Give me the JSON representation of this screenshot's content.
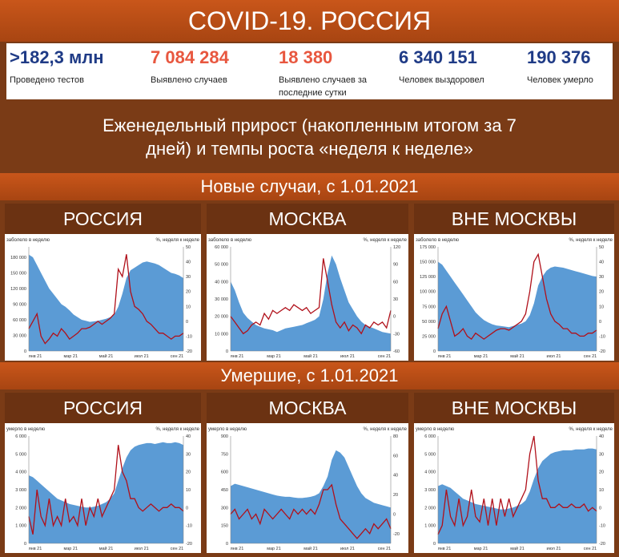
{
  "header": {
    "title": "COVID-19. РОССИЯ"
  },
  "stats": [
    {
      "value": ">182,3 млн",
      "label": "Проведено тестов",
      "color": "#1f3b86"
    },
    {
      "value": "7 084 284",
      "label": "Выявлено случаев",
      "color": "#e8573f"
    },
    {
      "value": "18 380",
      "label": "Выявлено случаев за последние сутки",
      "color": "#e8573f"
    },
    {
      "value": "6 340 151",
      "label": "Человек выздоровел",
      "color": "#1f3b86"
    },
    {
      "value": "190 376",
      "label": "Человек умерло",
      "color": "#1f3b86"
    }
  ],
  "subtitle_line1": "Еженедельный прирост (накопленным итогом за 7",
  "subtitle_line2": "дней) и темпы роста «неделя к неделе»",
  "section_cases": "Новые случаи, с 1.01.2021",
  "section_deaths": "Умершие, с 1.01.2021",
  "regions": [
    "РОССИЯ",
    "МОСКВА",
    "ВНЕ МОСКВЫ"
  ],
  "colors": {
    "area": "#5b9bd5",
    "line": "#b0101a"
  },
  "chart_data": [
    {
      "type": "area",
      "ylabel": "заболело в неделю",
      "y2label": "%, неделя к неделе",
      "x_ticks": [
        "янв 21",
        "мар 21",
        "май 21",
        "июл 21",
        "сен 21"
      ],
      "y_ticks": [
        "0",
        "30 000",
        "60 000",
        "90 000",
        "120 000",
        "150 000",
        "180 000"
      ],
      "ylim": [
        0,
        200000
      ],
      "y2_ticks": [
        "-20",
        "-10",
        "0",
        "10",
        "20",
        "30",
        "40",
        "50"
      ],
      "y2lim": [
        -20,
        50
      ],
      "series": [
        {
          "values": [
            185000,
            180000,
            165000,
            150000,
            135000,
            120000,
            110000,
            100000,
            90000,
            85000,
            78000,
            70000,
            65000,
            60000,
            58000,
            56000,
            57000,
            58000,
            60000,
            62000,
            65000,
            70000,
            85000,
            110000,
            140000,
            155000,
            160000,
            165000,
            170000,
            172000,
            170000,
            168000,
            165000,
            160000,
            155000,
            150000,
            148000,
            145000,
            140000
          ]
        },
        {
          "values": [
            -5,
            0,
            5,
            -10,
            -15,
            -12,
            -8,
            -10,
            -5,
            -8,
            -12,
            -10,
            -8,
            -5,
            -5,
            -4,
            -2,
            0,
            -2,
            0,
            2,
            5,
            35,
            30,
            45,
            20,
            10,
            8,
            5,
            0,
            -2,
            -5,
            -8,
            -8,
            -10,
            -12,
            -10,
            -10,
            -8
          ]
        }
      ]
    },
    {
      "type": "area",
      "ylabel": "заболело в неделю",
      "y2label": "%, неделя к неделе",
      "x_ticks": [
        "янв 21",
        "мар 21",
        "май 21",
        "июл 21",
        "сен 21"
      ],
      "y_ticks": [
        "0",
        "10 000",
        "20 000",
        "30 000",
        "40 000",
        "50 000",
        "60 000"
      ],
      "ylim": [
        0,
        60000
      ],
      "y2_ticks": [
        "-60",
        "-30",
        "0",
        "30",
        "60",
        "90",
        "120"
      ],
      "y2lim": [
        -60,
        120
      ],
      "series": [
        {
          "values": [
            40000,
            35000,
            28000,
            22000,
            19000,
            17000,
            15000,
            14000,
            13000,
            12500,
            12000,
            11000,
            12000,
            13000,
            13500,
            14000,
            14500,
            15000,
            16000,
            17000,
            18000,
            20000,
            30000,
            45000,
            55000,
            50000,
            42000,
            35000,
            28000,
            24000,
            20000,
            17000,
            15000,
            14000,
            13000,
            12000,
            11000,
            10500,
            10000
          ]
        },
        {
          "values": [
            0,
            -10,
            -20,
            -30,
            -25,
            -15,
            -10,
            -15,
            5,
            -5,
            10,
            5,
            10,
            15,
            10,
            20,
            15,
            10,
            15,
            5,
            10,
            15,
            100,
            60,
            20,
            -10,
            -20,
            -10,
            -25,
            -15,
            -20,
            -30,
            -15,
            -20,
            -10,
            -15,
            -10,
            -20,
            10
          ]
        }
      ]
    },
    {
      "type": "area",
      "ylabel": "заболело в неделю",
      "y2label": "%, неделя к неделе",
      "x_ticks": [
        "янв 21",
        "мар 21",
        "май 21",
        "июл 21",
        "сен 21"
      ],
      "y_ticks": [
        "0",
        "25 000",
        "50 000",
        "75 000",
        "100 000",
        "125 000",
        "150 000",
        "175 000"
      ],
      "ylim": [
        0,
        175000
      ],
      "y2_ticks": [
        "-20",
        "-10",
        "0",
        "10",
        "20",
        "30",
        "40",
        "50"
      ],
      "y2lim": [
        -20,
        50
      ],
      "series": [
        {
          "values": [
            150000,
            145000,
            135000,
            125000,
            115000,
            105000,
            95000,
            85000,
            75000,
            65000,
            58000,
            52000,
            48000,
            45000,
            43000,
            42000,
            41000,
            40000,
            42000,
            44000,
            46000,
            50000,
            60000,
            80000,
            110000,
            125000,
            135000,
            140000,
            142000,
            141000,
            140000,
            138000,
            136000,
            134000,
            132000,
            130000,
            128000,
            126000,
            125000
          ]
        },
        {
          "values": [
            -5,
            5,
            10,
            0,
            -10,
            -8,
            -5,
            -10,
            -12,
            -8,
            -10,
            -12,
            -10,
            -8,
            -6,
            -5,
            -5,
            -6,
            -4,
            -2,
            0,
            5,
            20,
            40,
            45,
            30,
            15,
            5,
            0,
            -2,
            -5,
            -5,
            -8,
            -8,
            -10,
            -10,
            -8,
            -8,
            -6
          ]
        }
      ]
    },
    {
      "type": "area",
      "ylabel": "умерло в неделю",
      "y2label": "%, неделя к неделе",
      "x_ticks": [
        "янв 21",
        "мар 21",
        "май 21",
        "июл 21",
        "сен 21"
      ],
      "y_ticks": [
        "0",
        "1 000",
        "2 000",
        "3 000",
        "4 000",
        "5 000",
        "6 000"
      ],
      "ylim": [
        0,
        6000
      ],
      "y2_ticks": [
        "-20",
        "-10",
        "0",
        "10",
        "20",
        "30",
        "40"
      ],
      "y2lim": [
        -20,
        40
      ],
      "series": [
        {
          "values": [
            3800,
            3700,
            3500,
            3300,
            3100,
            2900,
            2700,
            2500,
            2400,
            2300,
            2200,
            2150,
            2100,
            2050,
            2000,
            2000,
            2050,
            2100,
            2200,
            2300,
            2500,
            2800,
            3500,
            4200,
            4800,
            5200,
            5400,
            5500,
            5550,
            5600,
            5600,
            5550,
            5600,
            5650,
            5600,
            5600,
            5650,
            5600,
            5500
          ]
        },
        {
          "values": [
            -5,
            -15,
            10,
            -5,
            -10,
            5,
            -10,
            -5,
            -10,
            5,
            -8,
            -5,
            -10,
            5,
            -10,
            0,
            -5,
            5,
            -5,
            0,
            5,
            10,
            35,
            20,
            15,
            5,
            5,
            0,
            -2,
            0,
            2,
            0,
            -2,
            0,
            0,
            2,
            0,
            0,
            -2
          ]
        }
      ]
    },
    {
      "type": "area",
      "ylabel": "умерло в неделю",
      "y2label": "%, неделя к неделе",
      "x_ticks": [
        "янв 21",
        "мар 21",
        "май 21",
        "июл 21",
        "сен 21"
      ],
      "y_ticks": [
        "0",
        "150",
        "300",
        "450",
        "600",
        "750",
        "900"
      ],
      "ylim": [
        0,
        900
      ],
      "y2_ticks": [
        "-20",
        "0",
        "20",
        "40",
        "60",
        "80"
      ],
      "y2lim": [
        -30,
        80
      ],
      "series": [
        {
          "values": [
            480,
            500,
            490,
            480,
            470,
            460,
            450,
            440,
            430,
            420,
            410,
            400,
            395,
            390,
            390,
            385,
            380,
            380,
            385,
            390,
            400,
            420,
            480,
            560,
            700,
            780,
            760,
            720,
            640,
            560,
            480,
            420,
            380,
            360,
            340,
            330,
            320,
            310,
            300
          ]
        },
        {
          "values": [
            0,
            5,
            -5,
            0,
            5,
            -5,
            0,
            -10,
            5,
            0,
            -5,
            0,
            5,
            0,
            -5,
            5,
            0,
            5,
            0,
            5,
            0,
            10,
            25,
            25,
            30,
            10,
            -5,
            -10,
            -15,
            -20,
            -25,
            -20,
            -15,
            -20,
            -10,
            -15,
            -10,
            -5,
            -15
          ]
        }
      ]
    },
    {
      "type": "area",
      "ylabel": "умерло в неделю",
      "y2label": "%, неделя к неделе",
      "x_ticks": [
        "янв 21",
        "мар 21",
        "май 21",
        "июл 21",
        "сен 21"
      ],
      "y_ticks": [
        "0",
        "1 000",
        "2 000",
        "3 000",
        "4 000",
        "5 000",
        "6 000"
      ],
      "ylim": [
        0,
        6000
      ],
      "y2_ticks": [
        "-20",
        "-10",
        "0",
        "10",
        "20",
        "30",
        "40"
      ],
      "y2lim": [
        -20,
        40
      ],
      "series": [
        {
          "values": [
            3200,
            3300,
            3200,
            3100,
            2900,
            2700,
            2500,
            2400,
            2300,
            2200,
            2150,
            2100,
            2050,
            2000,
            1950,
            1900,
            1900,
            1950,
            2000,
            2100,
            2200,
            2400,
            2900,
            3600,
            4200,
            4600,
            4800,
            5000,
            5100,
            5150,
            5200,
            5200,
            5200,
            5250,
            5250,
            5250,
            5300,
            5300,
            5250
          ]
        },
        {
          "values": [
            -15,
            -10,
            10,
            -5,
            -10,
            5,
            -10,
            -5,
            10,
            -5,
            -8,
            5,
            -10,
            5,
            -10,
            5,
            -5,
            5,
            -5,
            0,
            5,
            10,
            30,
            40,
            15,
            5,
            5,
            0,
            0,
            2,
            0,
            0,
            2,
            0,
            0,
            2,
            -2,
            0,
            -2
          ]
        }
      ]
    }
  ]
}
